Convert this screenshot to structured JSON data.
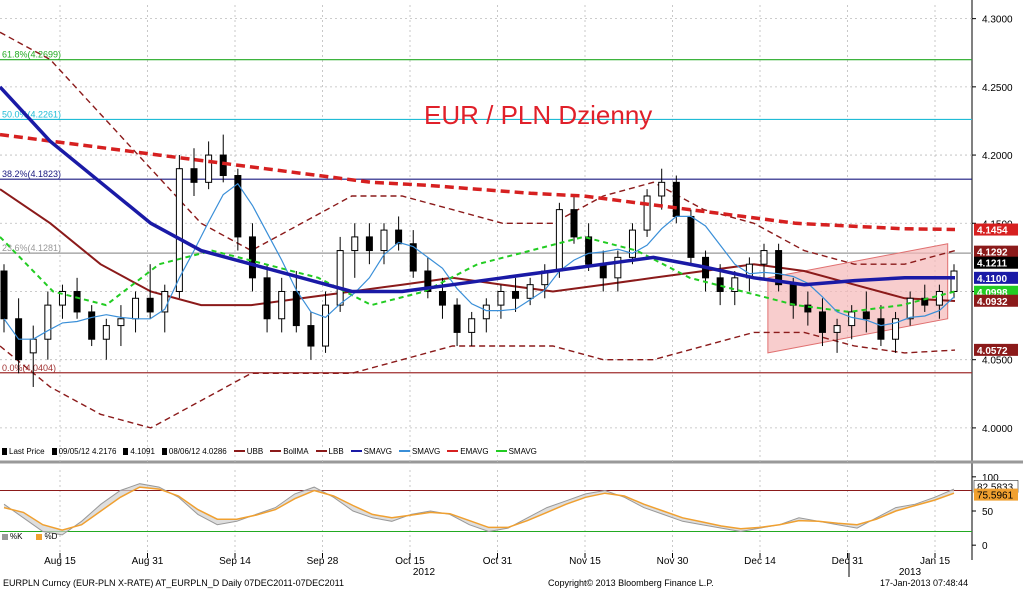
{
  "title": "EUR / PLN Dzienny",
  "legend": [
    {
      "symbol": "candle-icon",
      "label": "Last Price",
      "color": "#000000"
    },
    {
      "symbol": "high-icon",
      "label": "09/05/12 4.2176",
      "color": "#000000"
    },
    {
      "symbol": "avg-icon",
      "label": "4.1091",
      "color": "#000000"
    },
    {
      "symbol": "low-icon",
      "label": "08/06/12 4.0286",
      "color": "#000000"
    },
    {
      "symbol": "line",
      "label": "UBB",
      "color": "#8b1a1a",
      "dashed": true
    },
    {
      "symbol": "line",
      "label": "BollMA",
      "color": "#8b1a1a"
    },
    {
      "symbol": "line",
      "label": "LBB",
      "color": "#8b1a1a",
      "dashed": true
    },
    {
      "symbol": "line",
      "label": "SMAVG",
      "color": "#1a1aa6"
    },
    {
      "symbol": "line",
      "label": "SMAVG",
      "color": "#3a8fd8"
    },
    {
      "symbol": "line",
      "label": "EMAVG",
      "color": "#d62020",
      "dashed": true
    },
    {
      "symbol": "line",
      "label": "SMAVG",
      "color": "#22cc22",
      "dashed": true
    }
  ],
  "osc_legend": [
    {
      "label": "%K",
      "color": "#999999"
    },
    {
      "label": "%D",
      "color": "#f0a030"
    }
  ],
  "footer": {
    "left": "EURPLN Curncy (EUR-PLN X-RATE) AT_EURPLN_D  Daily 07DEC2011-07DEC2011",
    "center": "Copyright© 2013 Bloomberg Finance L.P.",
    "right": "17-Jan-2013 07:48:44"
  },
  "colors": {
    "candle": "#000000",
    "ubb": "#8b1a1a",
    "bollma": "#8b1a1a",
    "sma_long": "#1a1aa6",
    "sma_short": "#3a8fd8",
    "ema": "#d62020",
    "sma_green": "#22cc22",
    "channel": "#f5b8b8",
    "fib_61": "#22aa22",
    "fib_50": "#20bcd6",
    "fib_38": "#1a1a80",
    "fib_23": "#999999",
    "fib_0": "#a03030",
    "osc_k": "#999999",
    "osc_d": "#f0a030"
  },
  "chart_data": [
    {
      "type": "candlestick",
      "ylim": [
        3.975,
        4.31
      ],
      "y_ticks": [
        "4.0000",
        "4.0500",
        "4.1000",
        "4.1500",
        "4.2000",
        "4.2500",
        "4.3000"
      ],
      "x_ticks": [
        "Aug 15",
        "Aug 31",
        "Sep 14",
        "Sep 28",
        "Oct 15",
        "Oct 31",
        "Nov 15",
        "Nov 30",
        "Dec 14",
        "Dec 31",
        "Jan 15"
      ],
      "x_years": [
        "2012",
        "2013"
      ],
      "fib_levels": [
        {
          "label": "61.8%(4.2699)",
          "value": 4.2699,
          "color": "#22aa22"
        },
        {
          "label": "50.0%(4.2261)",
          "value": 4.2261,
          "color": "#20bcd6"
        },
        {
          "label": "38.2%(4.1823)",
          "value": 4.1823,
          "color": "#1a1a80"
        },
        {
          "label": "23.6%(4.1281)",
          "value": 4.1281,
          "color": "#999999"
        },
        {
          "label": "0.0%(4.0404)",
          "value": 4.0404,
          "color": "#a03030"
        }
      ],
      "price_tags": [
        {
          "label": "4.1454",
          "value": 4.1454,
          "bg": "#d62020"
        },
        {
          "label": "4.1292",
          "value": 4.1292,
          "bg": "#8b1a1a"
        },
        {
          "label": "4.1211",
          "value": 4.1211,
          "bg": "#000000"
        },
        {
          "label": "4.1100",
          "value": 4.11,
          "bg": "#1a1aa6"
        },
        {
          "label": "4.0998",
          "value": 4.0998,
          "bg": "#22cc22"
        },
        {
          "label": "4.0932",
          "value": 4.0932,
          "bg": "#8b1a1a"
        },
        {
          "label": "4.0572",
          "value": 4.0572,
          "bg": "#8b1a1a"
        }
      ],
      "candles": [
        [
          4.115,
          4.12,
          4.07,
          4.08
        ],
        [
          4.08,
          4.095,
          4.04,
          4.05
        ],
        [
          4.055,
          4.075,
          4.03,
          4.065
        ],
        [
          4.065,
          4.1,
          4.05,
          4.09
        ],
        [
          4.09,
          4.105,
          4.08,
          4.1
        ],
        [
          4.1,
          4.11,
          4.08,
          4.085
        ],
        [
          4.085,
          4.09,
          4.06,
          4.065
        ],
        [
          4.065,
          4.08,
          4.05,
          4.075
        ],
        [
          4.075,
          4.09,
          4.06,
          4.08
        ],
        [
          4.08,
          4.1,
          4.07,
          4.095
        ],
        [
          4.095,
          4.12,
          4.08,
          4.085
        ],
        [
          4.085,
          4.105,
          4.07,
          4.1
        ],
        [
          4.1,
          4.2,
          4.095,
          4.19
        ],
        [
          4.19,
          4.205,
          4.17,
          4.18
        ],
        [
          4.18,
          4.21,
          4.175,
          4.2
        ],
        [
          4.2,
          4.215,
          4.18,
          4.185
        ],
        [
          4.185,
          4.19,
          4.13,
          4.14
        ],
        [
          4.14,
          4.15,
          4.1,
          4.11
        ],
        [
          4.11,
          4.12,
          4.07,
          4.08
        ],
        [
          4.08,
          4.11,
          4.07,
          4.1
        ],
        [
          4.1,
          4.115,
          4.07,
          4.075
        ],
        [
          4.075,
          4.085,
          4.05,
          4.06
        ],
        [
          4.06,
          4.1,
          4.055,
          4.09
        ],
        [
          4.09,
          4.14,
          4.085,
          4.13
        ],
        [
          4.13,
          4.15,
          4.11,
          4.14
        ],
        [
          4.14,
          4.15,
          4.12,
          4.13
        ],
        [
          4.13,
          4.15,
          4.12,
          4.145
        ],
        [
          4.145,
          4.155,
          4.13,
          4.135
        ],
        [
          4.135,
          4.145,
          4.11,
          4.115
        ],
        [
          4.115,
          4.125,
          4.095,
          4.1
        ],
        [
          4.1,
          4.11,
          4.08,
          4.09
        ],
        [
          4.09,
          4.095,
          4.06,
          4.07
        ],
        [
          4.07,
          4.085,
          4.06,
          4.08
        ],
        [
          4.08,
          4.095,
          4.07,
          4.09
        ],
        [
          4.09,
          4.105,
          4.08,
          4.1
        ],
        [
          4.1,
          4.11,
          4.085,
          4.095
        ],
        [
          4.095,
          4.11,
          4.09,
          4.105
        ],
        [
          4.105,
          4.12,
          4.095,
          4.115
        ],
        [
          4.115,
          4.165,
          4.11,
          4.16
        ],
        [
          4.16,
          4.17,
          4.135,
          4.14
        ],
        [
          4.14,
          4.15,
          4.115,
          4.12
        ],
        [
          4.12,
          4.13,
          4.1,
          4.11
        ],
        [
          4.11,
          4.13,
          4.1,
          4.125
        ],
        [
          4.125,
          4.15,
          4.12,
          4.145
        ],
        [
          4.145,
          4.175,
          4.14,
          4.17
        ],
        [
          4.17,
          4.19,
          4.16,
          4.18
        ],
        [
          4.18,
          4.185,
          4.15,
          4.155
        ],
        [
          4.155,
          4.16,
          4.12,
          4.125
        ],
        [
          4.125,
          4.13,
          4.1,
          4.11
        ],
        [
          4.11,
          4.12,
          4.09,
          4.1
        ],
        [
          4.1,
          4.115,
          4.09,
          4.11
        ],
        [
          4.11,
          4.125,
          4.1,
          4.12
        ],
        [
          4.12,
          4.135,
          4.11,
          4.13
        ],
        [
          4.13,
          4.135,
          4.1,
          4.105
        ],
        [
          4.105,
          4.11,
          4.08,
          4.09
        ],
        [
          4.09,
          4.1,
          4.075,
          4.085
        ],
        [
          4.085,
          4.095,
          4.06,
          4.07
        ],
        [
          4.07,
          4.08,
          4.055,
          4.075
        ],
        [
          4.075,
          4.09,
          4.065,
          4.085
        ],
        [
          4.085,
          4.1,
          4.07,
          4.08
        ],
        [
          4.08,
          4.09,
          4.06,
          4.065
        ],
        [
          4.065,
          4.085,
          4.055,
          4.08
        ],
        [
          4.08,
          4.1,
          4.075,
          4.095
        ],
        [
          4.095,
          4.105,
          4.085,
          4.09
        ],
        [
          4.09,
          4.105,
          4.08,
          4.1
        ],
        [
          4.1,
          4.12,
          4.095,
          4.115
        ]
      ],
      "series_ubb": [
        4.29,
        4.27,
        4.23,
        4.19,
        4.15,
        4.13,
        4.15,
        4.17,
        4.17,
        4.16,
        4.15,
        4.15,
        4.17,
        4.18,
        4.16,
        4.15,
        4.13,
        4.12,
        4.12,
        4.13
      ],
      "series_bollma": [
        4.175,
        4.15,
        4.12,
        4.1,
        4.09,
        4.09,
        4.095,
        4.1,
        4.105,
        4.11,
        4.105,
        4.1,
        4.105,
        4.11,
        4.115,
        4.12,
        4.115,
        4.105,
        4.095,
        4.093
      ],
      "series_lbb": [
        4.06,
        4.03,
        4.01,
        4.0,
        4.02,
        4.04,
        4.04,
        4.04,
        4.05,
        4.06,
        4.06,
        4.06,
        4.05,
        4.05,
        4.06,
        4.07,
        4.07,
        4.06,
        4.055,
        4.057
      ],
      "series_sma_long": [
        4.25,
        4.21,
        4.18,
        4.15,
        4.13,
        4.12,
        4.11,
        4.1,
        4.1,
        4.105,
        4.11,
        4.115,
        4.12,
        4.125,
        4.118,
        4.11,
        4.105,
        4.108,
        4.11,
        4.11
      ],
      "series_ema": [
        4.215,
        4.21,
        4.205,
        4.2,
        4.195,
        4.19,
        4.185,
        4.18,
        4.178,
        4.175,
        4.172,
        4.17,
        4.165,
        4.16,
        4.155,
        4.15,
        4.148,
        4.146,
        4.1454
      ],
      "series_sma_green": [
        4.14,
        4.1,
        4.09,
        4.12,
        4.13,
        4.12,
        4.11,
        4.09,
        4.1,
        4.12,
        4.13,
        4.14,
        4.13,
        4.11,
        4.1,
        4.09,
        4.085,
        4.09,
        4.1
      ],
      "channel": {
        "x_start": 0.79,
        "x_end": 0.975,
        "upper": [
          4.11,
          4.135
        ],
        "lower": [
          4.055,
          4.08
        ]
      },
      "y_label_visible": true
    },
    {
      "type": "area",
      "name": "stochastic",
      "ylim": [
        -10,
        110
      ],
      "y_ticks": [
        "0",
        "50",
        "100"
      ],
      "levels": [
        80,
        20
      ],
      "value_tags": [
        {
          "label": "82.5833",
          "bg": "#ffffff"
        },
        {
          "label": "75.5961",
          "bg": "#f0a030"
        }
      ],
      "k": [
        60,
        40,
        20,
        15,
        35,
        60,
        80,
        90,
        85,
        70,
        45,
        30,
        35,
        45,
        55,
        75,
        85,
        70,
        50,
        40,
        35,
        45,
        50,
        45,
        30,
        20,
        25,
        40,
        55,
        65,
        75,
        80,
        70,
        55,
        45,
        35,
        30,
        25,
        20,
        25,
        30,
        40,
        35,
        30,
        25,
        40,
        55,
        60,
        70,
        82
      ],
      "d": [
        55,
        48,
        30,
        22,
        30,
        50,
        70,
        85,
        82,
        72,
        52,
        38,
        38,
        44,
        52,
        68,
        80,
        72,
        58,
        45,
        40,
        44,
        48,
        46,
        36,
        26,
        26,
        36,
        48,
        60,
        70,
        76,
        72,
        60,
        50,
        40,
        34,
        28,
        24,
        26,
        30,
        36,
        35,
        32,
        30,
        38,
        50,
        58,
        66,
        76
      ]
    }
  ]
}
